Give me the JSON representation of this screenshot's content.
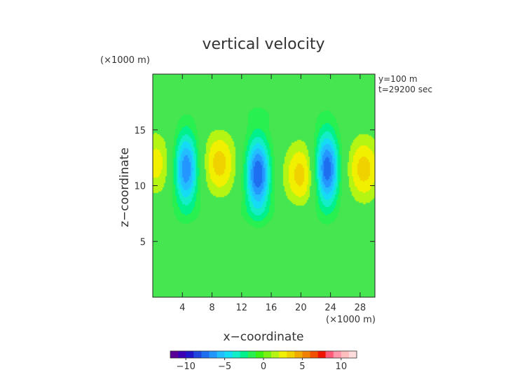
{
  "chart_data": {
    "type": "heatmap",
    "title": "vertical velocity",
    "xlabel": "x−coordinate",
    "ylabel": "z−coordinate",
    "x_unit": "(×1000 m)",
    "y_unit": "(×1000 m)",
    "annotations": [
      "y=100 m",
      "t=29200 sec"
    ],
    "xlim": [
      0,
      30
    ],
    "ylim": [
      0,
      20
    ],
    "x_ticks": [
      4,
      8,
      12,
      16,
      20,
      24,
      28
    ],
    "x_tick_labels": [
      "4",
      "8",
      "12",
      "16",
      "20",
      "24",
      "28"
    ],
    "y_ticks": [
      5,
      10,
      15
    ],
    "y_tick_labels": [
      "5",
      "10",
      "15"
    ],
    "colorbar": {
      "range": [
        -12,
        12
      ],
      "ticks": [
        -10,
        -5,
        0,
        5,
        10
      ],
      "tick_labels": [
        "−10",
        "−5",
        "0",
        "5",
        "10"
      ],
      "colors": [
        "#5a0096",
        "#3c00b4",
        "#1e14c8",
        "#1e46dc",
        "#1e6ef0",
        "#2396ff",
        "#23beff",
        "#14dcf5",
        "#14eec8",
        "#00f08c",
        "#28f050",
        "#3cf014",
        "#78f014",
        "#b4f514",
        "#f0f000",
        "#f0d200",
        "#f0aa00",
        "#f08200",
        "#f05000",
        "#f01400",
        "#ff5a78",
        "#ff96aa",
        "#ffbebe",
        "#ffdcdc"
      ]
    },
    "background_level": 0,
    "features": [
      {
        "kind": "updraft_core",
        "x": 4.5,
        "z": 11.5,
        "peak": -7
      },
      {
        "kind": "updraft_core",
        "x": 14.2,
        "z": 11.0,
        "peak": -8
      },
      {
        "kind": "updraft_core",
        "x": 23.5,
        "z": 11.5,
        "peak": -8
      },
      {
        "kind": "downdraft",
        "x": 9.0,
        "z": 12.0,
        "peak": 3.5
      },
      {
        "kind": "downdraft",
        "x": 20.0,
        "z": 11.0,
        "peak": 3.5
      },
      {
        "kind": "downdraft",
        "x": 28.5,
        "z": 11.5,
        "peak": 3.5
      },
      {
        "kind": "downdraft",
        "x": 0.5,
        "z": 12.0,
        "peak": 2.5
      },
      {
        "kind": "upper_band",
        "x": 15,
        "z": 16.5,
        "peak": -0.7
      },
      {
        "kind": "upper_band",
        "x": 15,
        "z": 19.0,
        "peak": -0.7
      },
      {
        "kind": "lower_band",
        "x": 12,
        "z": 7.5,
        "peak": -0.7
      },
      {
        "kind": "near_surface",
        "x": 12,
        "z": 3.0,
        "peak": 0.7
      }
    ]
  }
}
